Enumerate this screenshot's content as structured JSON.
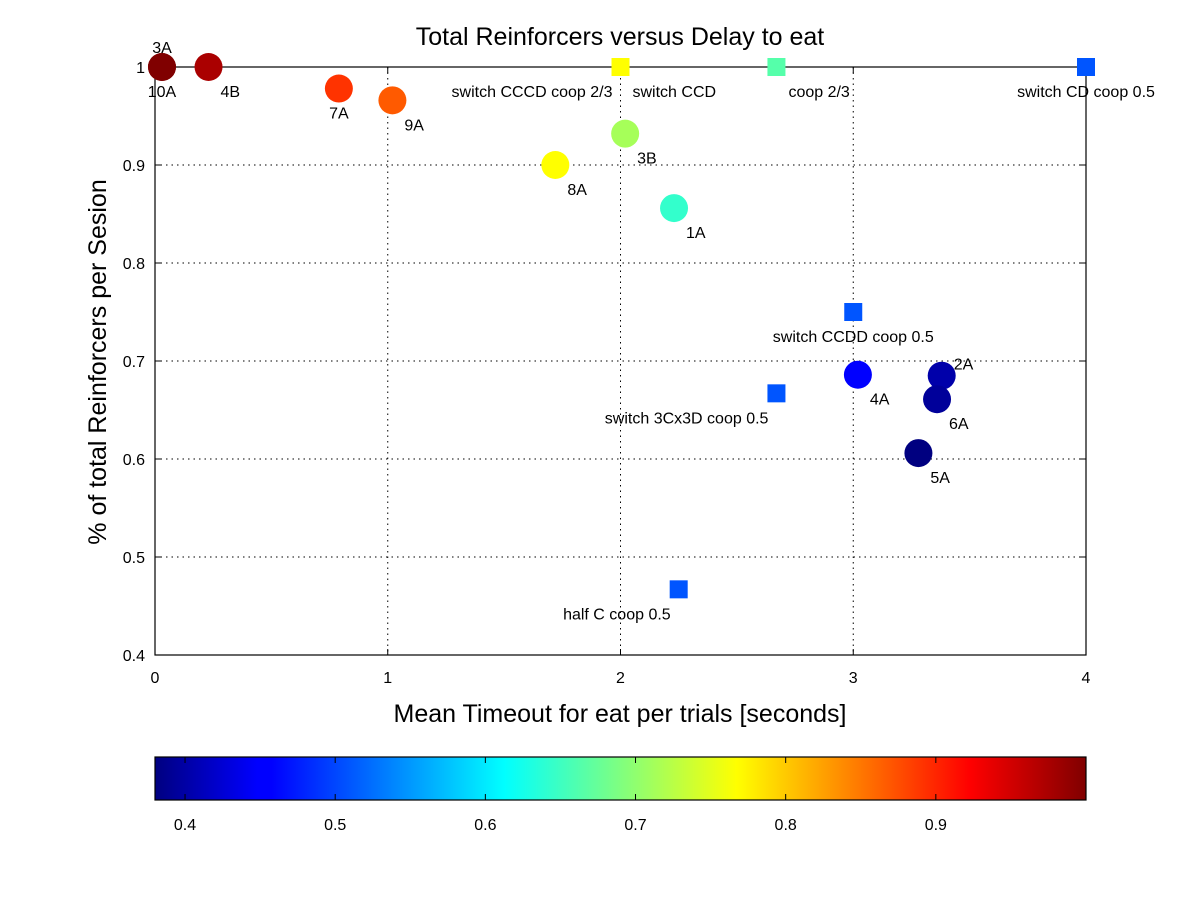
{
  "chart_data": {
    "type": "scatter",
    "title": "Total Reinforcers versus Delay to eat",
    "xlabel": "Mean Timeout for eat per trials [seconds]",
    "ylabel": "% of total Reinforcers per Sesion",
    "xlim": [
      0,
      4
    ],
    "ylim": [
      0.4,
      1
    ],
    "xticks": [
      0,
      1,
      2,
      3,
      4
    ],
    "yticks": [
      0.4,
      0.5,
      0.6,
      0.7,
      0.8,
      0.9,
      1
    ],
    "grid": true,
    "colorbar": {
      "orientation": "horizontal",
      "placement": "bottom",
      "colormap": "jet",
      "range": [
        0.38,
        1.0
      ],
      "ticks": [
        0.4,
        0.5,
        0.6,
        0.7,
        0.8,
        0.9
      ]
    },
    "circles": [
      {
        "label": "3A",
        "x": 0.03,
        "y": 1.0,
        "color": "#800000",
        "label_pos": "above"
      },
      {
        "label": "10A",
        "x": 0.03,
        "y": 1.0,
        "color": "#800000",
        "label_pos": "below"
      },
      {
        "label": "4B",
        "x": 0.23,
        "y": 1.0,
        "color": "#aa0000",
        "label_pos": "below-right"
      },
      {
        "label": "7A",
        "x": 0.79,
        "y": 0.978,
        "color": "#ff3300",
        "label_pos": "below"
      },
      {
        "label": "9A",
        "x": 1.02,
        "y": 0.966,
        "color": "#ff5a00",
        "label_pos": "below-right"
      },
      {
        "label": "3B",
        "x": 2.02,
        "y": 0.932,
        "color": "#a6ff59",
        "label_pos": "below-right"
      },
      {
        "label": "8A",
        "x": 1.72,
        "y": 0.9,
        "color": "#ffff00",
        "label_pos": "below-right"
      },
      {
        "label": "1A",
        "x": 2.23,
        "y": 0.856,
        "color": "#33ffcc",
        "label_pos": "below-right"
      },
      {
        "label": "4A",
        "x": 3.02,
        "y": 0.686,
        "color": "#0000ff",
        "label_pos": "below-right"
      },
      {
        "label": "2A",
        "x": 3.38,
        "y": 0.685,
        "color": "#0000aa",
        "label_pos": "above-right"
      },
      {
        "label": "6A",
        "x": 3.36,
        "y": 0.661,
        "color": "#00009a",
        "label_pos": "below-right"
      },
      {
        "label": "5A",
        "x": 3.28,
        "y": 0.606,
        "color": "#000080",
        "label_pos": "below-right"
      }
    ],
    "squares": [
      {
        "label": "switch CCCD  coop 2/3",
        "x": 2.0,
        "y": 1.0,
        "color": "#ffff00",
        "label_pos": "below-left"
      },
      {
        "label": "switch CCD",
        "x": 2.0,
        "y": 1.0,
        "color": "#ffff00",
        "label_pos": "below-right"
      },
      {
        "label": "coop 2/3",
        "x": 2.67,
        "y": 1.0,
        "color": "#55ffaa",
        "label_pos": "below-right"
      },
      {
        "label": "switch CD coop 0.5",
        "x": 4.0,
        "y": 1.0,
        "color": "#0055ff",
        "label_pos": "below"
      },
      {
        "label": "switch CCDD coop 0.5",
        "x": 3.0,
        "y": 0.75,
        "color": "#0055ff",
        "label_pos": "below"
      },
      {
        "label": "switch 3Cx3D coop 0.5",
        "x": 2.67,
        "y": 0.667,
        "color": "#0055ff",
        "label_pos": "below-left"
      },
      {
        "label": "half C coop 0.5",
        "x": 2.25,
        "y": 0.467,
        "color": "#0055ff",
        "label_pos": "below-left"
      }
    ]
  }
}
